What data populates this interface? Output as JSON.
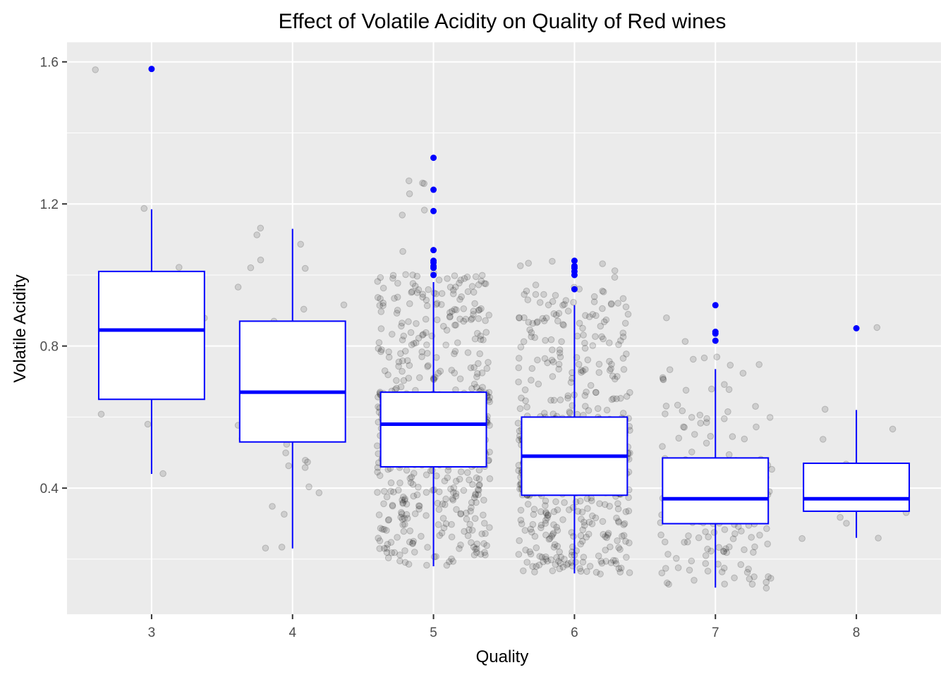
{
  "chart_data": {
    "type": "box",
    "title": "Effect of Volatile Acidity on Quality of Red wines",
    "xlabel": "Quality",
    "ylabel": "Volatile Acidity",
    "categories": [
      "3",
      "4",
      "5",
      "6",
      "7",
      "8"
    ],
    "ylim": [
      0.045,
      1.655
    ],
    "y_ticks": [
      0.4,
      0.8,
      1.2,
      1.6
    ],
    "y_tick_labels": [
      "0.4",
      "0.8",
      "1.2",
      "1.6"
    ],
    "grid": true,
    "legend": "none",
    "colors": {
      "panel_background": "#ebebeb",
      "grid": "#ffffff",
      "box": "#0000ff",
      "box_fill": "#ffffff",
      "jitter_points": "#000000"
    },
    "boxes": [
      {
        "category": "3",
        "lower_whisker": 0.44,
        "q1": 0.65,
        "median": 0.845,
        "q3": 1.01,
        "upper_whisker": 1.185,
        "outliers": [
          1.58
        ]
      },
      {
        "category": "4",
        "lower_whisker": 0.23,
        "q1": 0.53,
        "median": 0.67,
        "q3": 0.87,
        "upper_whisker": 1.13,
        "outliers": []
      },
      {
        "category": "5",
        "lower_whisker": 0.18,
        "q1": 0.46,
        "median": 0.58,
        "q3": 0.67,
        "upper_whisker": 0.98,
        "outliers": [
          1.0,
          1.02,
          1.025,
          1.035,
          1.04,
          1.07,
          1.18,
          1.24,
          1.33
        ]
      },
      {
        "category": "6",
        "lower_whisker": 0.16,
        "q1": 0.38,
        "median": 0.49,
        "q3": 0.6,
        "upper_whisker": 0.915,
        "outliers": [
          0.96,
          1.0,
          1.01,
          1.02,
          1.025,
          1.04
        ]
      },
      {
        "category": "7",
        "lower_whisker": 0.12,
        "q1": 0.3,
        "median": 0.37,
        "q3": 0.485,
        "upper_whisker": 0.735,
        "outliers": [
          0.815,
          0.835,
          0.84,
          0.915
        ]
      },
      {
        "category": "8",
        "lower_whisker": 0.26,
        "q1": 0.335,
        "median": 0.37,
        "q3": 0.47,
        "upper_whisker": 0.62,
        "outliers": [
          0.85
        ]
      }
    ],
    "jitter_points": [
      {
        "category": "3",
        "values": [
          1.58,
          1.185,
          1.02,
          0.98,
          0.875,
          0.815,
          0.76,
          0.61,
          0.58,
          0.44
        ]
      },
      {
        "category": "4",
        "values": [
          1.13,
          1.115,
          1.09,
          1.04,
          1.02,
          1.02,
          0.965,
          0.915,
          0.9,
          0.87,
          0.85,
          0.84,
          0.835,
          0.8,
          0.79,
          0.785,
          0.76,
          0.72,
          0.68,
          0.68,
          0.675,
          0.67,
          0.665,
          0.66,
          0.64,
          0.635,
          0.62,
          0.61,
          0.6,
          0.59,
          0.58,
          0.58,
          0.56,
          0.55,
          0.54,
          0.52,
          0.5,
          0.48,
          0.47,
          0.465,
          0.46,
          0.4,
          0.39,
          0.35,
          0.33,
          0.23,
          0.23
        ]
      },
      {
        "category": "5",
        "count": 681,
        "min": 0.18,
        "q1": 0.46,
        "median": 0.58,
        "q3": 0.67,
        "max": 1.33
      },
      {
        "category": "6",
        "count": 638,
        "min": 0.16,
        "q1": 0.38,
        "median": 0.49,
        "q3": 0.6,
        "max": 1.04
      },
      {
        "category": "7",
        "count": 199,
        "min": 0.12,
        "q1": 0.3,
        "median": 0.37,
        "q3": 0.485,
        "max": 0.915
      },
      {
        "category": "8",
        "values": [
          0.85,
          0.62,
          0.57,
          0.54,
          0.47,
          0.42,
          0.42,
          0.4,
          0.37,
          0.36,
          0.35,
          0.35,
          0.34,
          0.33,
          0.32,
          0.3,
          0.26,
          0.26
        ]
      }
    ]
  }
}
